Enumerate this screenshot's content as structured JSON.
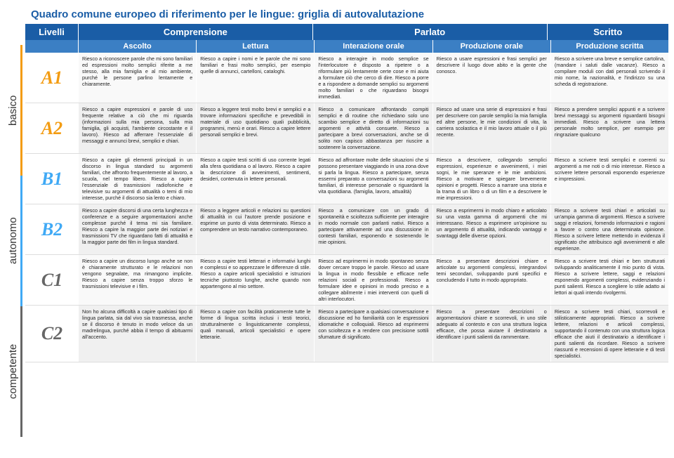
{
  "title": "Quadro comune europeo di riferimento per le lingue: griglia di autovalutazione",
  "colors": {
    "header_bg": "#1a5da6",
    "subheader_bg": "#3b7fc4",
    "basico": "#f39c12",
    "autonomo": "#3fa9f5",
    "competente": "#666666",
    "text": "#222222",
    "alt_row": "#f0f0f0"
  },
  "bands": {
    "basico": "basico",
    "autonomo": "autonomo",
    "competente": "competente"
  },
  "header": {
    "livelli": "Livelli",
    "comprensione": "Comprensione",
    "parlato": "Parlato",
    "scritto": "Scritto"
  },
  "subheader": {
    "ascolto": "Ascolto",
    "lettura": "Lettura",
    "interazione": "Interazione orale",
    "produzione_orale": "Produzione orale",
    "produzione_scritta": "Produzione scritta"
  },
  "rows": [
    {
      "code": "A1",
      "band": "basico",
      "ascolto": "Riesco a riconoscere parole che mi sono familiari ed espressioni molto semplici riferite a me stesso, alla mia famiglia e al mio ambiente, purché le persone parlino lentamente e chiaramente.",
      "lettura": "Riesco a capire i nomi e le parole che mi sono familiari e frasi molto semplici, per esempio quelle di annunci, cartelloni, cataloghi.",
      "interazione": "Riesco a interagire in modo semplice se l'interlocutore è disposto a ripetere o a riformulare più lentamente certe cose e mi aiuta a formulare ciò che cerco di dire. Riesco a porre e a rispondere a domande semplici su argomenti molto familiari o che riguardano bisogni immediati.",
      "produzione_orale": "Riesco a usare espressioni e frasi semplici per descrivere il luogo dove abito e la gente che conosco.",
      "produzione_scritta": "Riesco a scrivere una breve e semplice cartolina, (mandare i saluti dalle vacanze). Riesco a compilare moduli con dati personali scrivendo il mio nome, la nazionalità, e l'indirizzo su una scheda di registrazione."
    },
    {
      "code": "A2",
      "band": "basico",
      "ascolto": "Riesco a capire espressioni e parole di uso frequente relative a ciò che mi riguarda (informazioni sulla mia persona, sulla mia famiglia, gli acquisti, l'ambiente circostante e il lavoro). Riesco ad afferrare l'essenziale di messaggi e annunci brevi, semplici e chiari.",
      "lettura": "Riesco a leggere testi molto brevi e semplici e a trovare informazioni specifiche e prevedibili in materiale di uso quotidiano quali pubblicità, programmi, menù e orari. Riesco a capire lettere personali semplici e brevi.",
      "interazione": "Riesco a comunicare affrontando compiti semplici e di routine che richiedano solo uno scambio semplice e diretto di informazioni su argomenti e attività consuete. Riesco a partecipare a brevi conversazioni, anche se di solito non capisco abbastanza per riuscire a sostenere la conversazione.",
      "produzione_orale": "Riesco ad usare una serie di espressioni e frasi per descrivere con parole semplici la mia famiglia ed altre persone, le mie condizioni di vita, la carriera scolastica e il mio lavoro attuale o il più recente.",
      "produzione_scritta": "Riesco a prendere semplici appunti e a scrivere brevi messaggi su argomenti riguardanti bisogni immediati. Riesco a scrivere una lettera personale molto semplice, per esempio per ringraziare qualcuno"
    },
    {
      "code": "B1",
      "band": "autonomo",
      "ascolto": "Riesco a capire gli elementi principali in un discorso in lingua standard su argomenti familiari, che affronto frequentemente al lavoro, a scuola, nel tempo libero. Riesco a capire l'essenziale di trasmissioni radiofoniche e televisive su argomenti di attualità o temi di mio interesse, purché il discorso sia lento e chiaro.",
      "lettura": "Riesco a capire testi scritti di uso corrente legati alla sfera quotidiana o al lavoro. Riesco a capire la descrizione di avvenimenti, sentimenti, desideri, contenuta in lettere personali.",
      "interazione": "Riesco ad affrontare molte delle situazioni che si possono presentare viaggiando in una zona dove si parla la lingua. Riesco a partecipare, senza essermi preparato a conversazioni su argomenti familiari, di interesse personale o riguardanti la vita quotidiana. (famiglia, lavoro, attualità)",
      "produzione_orale": "Riesco a descrivere, collegando semplici espressioni, esperienze e avvenimenti, i miei sogni, le mie speranze e le mie ambizioni. Riesco a motivare e spiegare brevemente opinioni e progetti. Riesco a narrare una storia e la trama di un libro o di un film e a descrivere le mie impressioni.",
      "produzione_scritta": "Riesco a scrivere testi semplici e coerenti su argomenti a me noti o di mio interesse. Riesco a scrivere lettere personali esponendo esperienze e impressioni."
    },
    {
      "code": "B2",
      "band": "autonomo",
      "ascolto": "Riesco a capire discorsi di una certa lunghezza e conferenze e a seguire argomentazioni anche complesse purché il tema mi sia familiare. Riesco a capire la maggior parte dei notiziari e trasmissioni TV che riguardano fatti di attualità e la maggior parte dei film in lingua standard.",
      "lettura": "Riesco a leggere articoli e relazioni su questioni di attualità in cui l'autore prende posizione e esprime un punto di vista determinato. Riesco a comprendere un testo narrativo contemporaneo.",
      "interazione": "Riesco a comunicare con un grado di spontaneità e scioltezza sufficiente per interagire in modo normale con parlanti nativi. Riesco a partecipare attivamente ad una discussione in contesti familiari, esponendo e sostenendo le mie opinioni.",
      "produzione_orale": "Riesco a esprimermi in modo chiaro e articolato su una vasta gamma di argomenti che mi interessano. Riesco a esprimere un'opinione su un argomento di attualità, indicando vantaggi e svantaggi delle diverse opzioni.",
      "produzione_scritta": "Riesco a scrivere testi chiari e articolati su un'ampia gamma di argomenti. Riesco a scrivere saggi e relazioni, fornendo informazioni e ragioni a favore o contro una determinata opinione. Riesco a scrivere lettere mettendo in evidenza il significato che attribuisco agli avvenimenti e alle esperienze."
    },
    {
      "code": "C1",
      "band": "competente",
      "ascolto": "Riesco a capire un discorso lungo anche se non è chiaramente strutturato e le relazioni non vengono segnalate, ma rimangono implicite. Riesco a capire senza troppo sforzo le trasmissioni televisive e i film.",
      "lettura": "Riesco a capire testi letterari e informativi lunghi e complessi e so apprezzare le differenze di stile. Riesco a capire articoli specialistici e istruzioni tecniche piuttosto lunghe, anche quando non appartengono al mio settore.",
      "interazione": "Riesco ad esprimermi in modo spontaneo senza dover cercare troppo le parole. Riesco ad usare la lingua in modo flessibile e efficace nelle relazioni sociali e professionali. Riesco a formulare idee e opinioni in modo preciso e a collegare abilmente i miei interventi con quelli di altri interlocutori.",
      "produzione_orale": "Riesco a presentare descrizioni chiare e articolate su argomenti complessi, integrandovi temi secondari, sviluppando punti specifici e concludendo il tutto in modo appropriato.",
      "produzione_scritta": "Riesco a scrivere testi chiari e ben strutturati sviluppando analiticamente il mio punto di vista. Riesco a scrivere lettere, saggi e relazioni esponendo argomenti complessi, evidenziando i punti salienti. Riesco a scegliere lo stile adatto ai lettori ai quali intendo rivolgermi."
    },
    {
      "code": "C2",
      "band": "competente",
      "ascolto": "Non ho alcuna difficoltà a capire qualsiasi tipo di lingua parlata, sia dal vivo sia trasmessa, anche se il discorso è tenuto in modo veloce da un madrelingua, purché abbia il tempo di abituarmi all'accento.",
      "lettura": "Riesco a capire con facilità praticamente tutte le forme di lingua scritta inclusi i testi teorici, strutturalmente o linguisticamente complessi, quali manuali, articoli specialistici e opere letterarie.",
      "interazione": "Riesco a partecipare a qualsiasi conversazione e discussione ed ho familiarità con le espressioni idiomatiche e colloquiali. Riesco ad esprimermi con scioltezza e a rendere con precisione sottili sfumature di significato.",
      "produzione_orale": "Riesco a presentare descrizioni o argomentazioni chiare e scorrevoli, in uno stile adeguato al contesto e con una struttura logica efficace, che possa aiutare il destinatario a identificare i punti salienti da rammentare.",
      "produzione_scritta": "Riesco a scrivere testi chiari, scorrevoli e stilisticamente appropriati. Riesco a scrivere lettere, relazioni e articoli complessi, supportando il contenuto con una struttura logica efficace che aiuti il destinatario a identificare i punti salienti da ricordare. Riesco a scrivere riassunti e recensioni di opere letterarie e di testi specialistici."
    }
  ]
}
